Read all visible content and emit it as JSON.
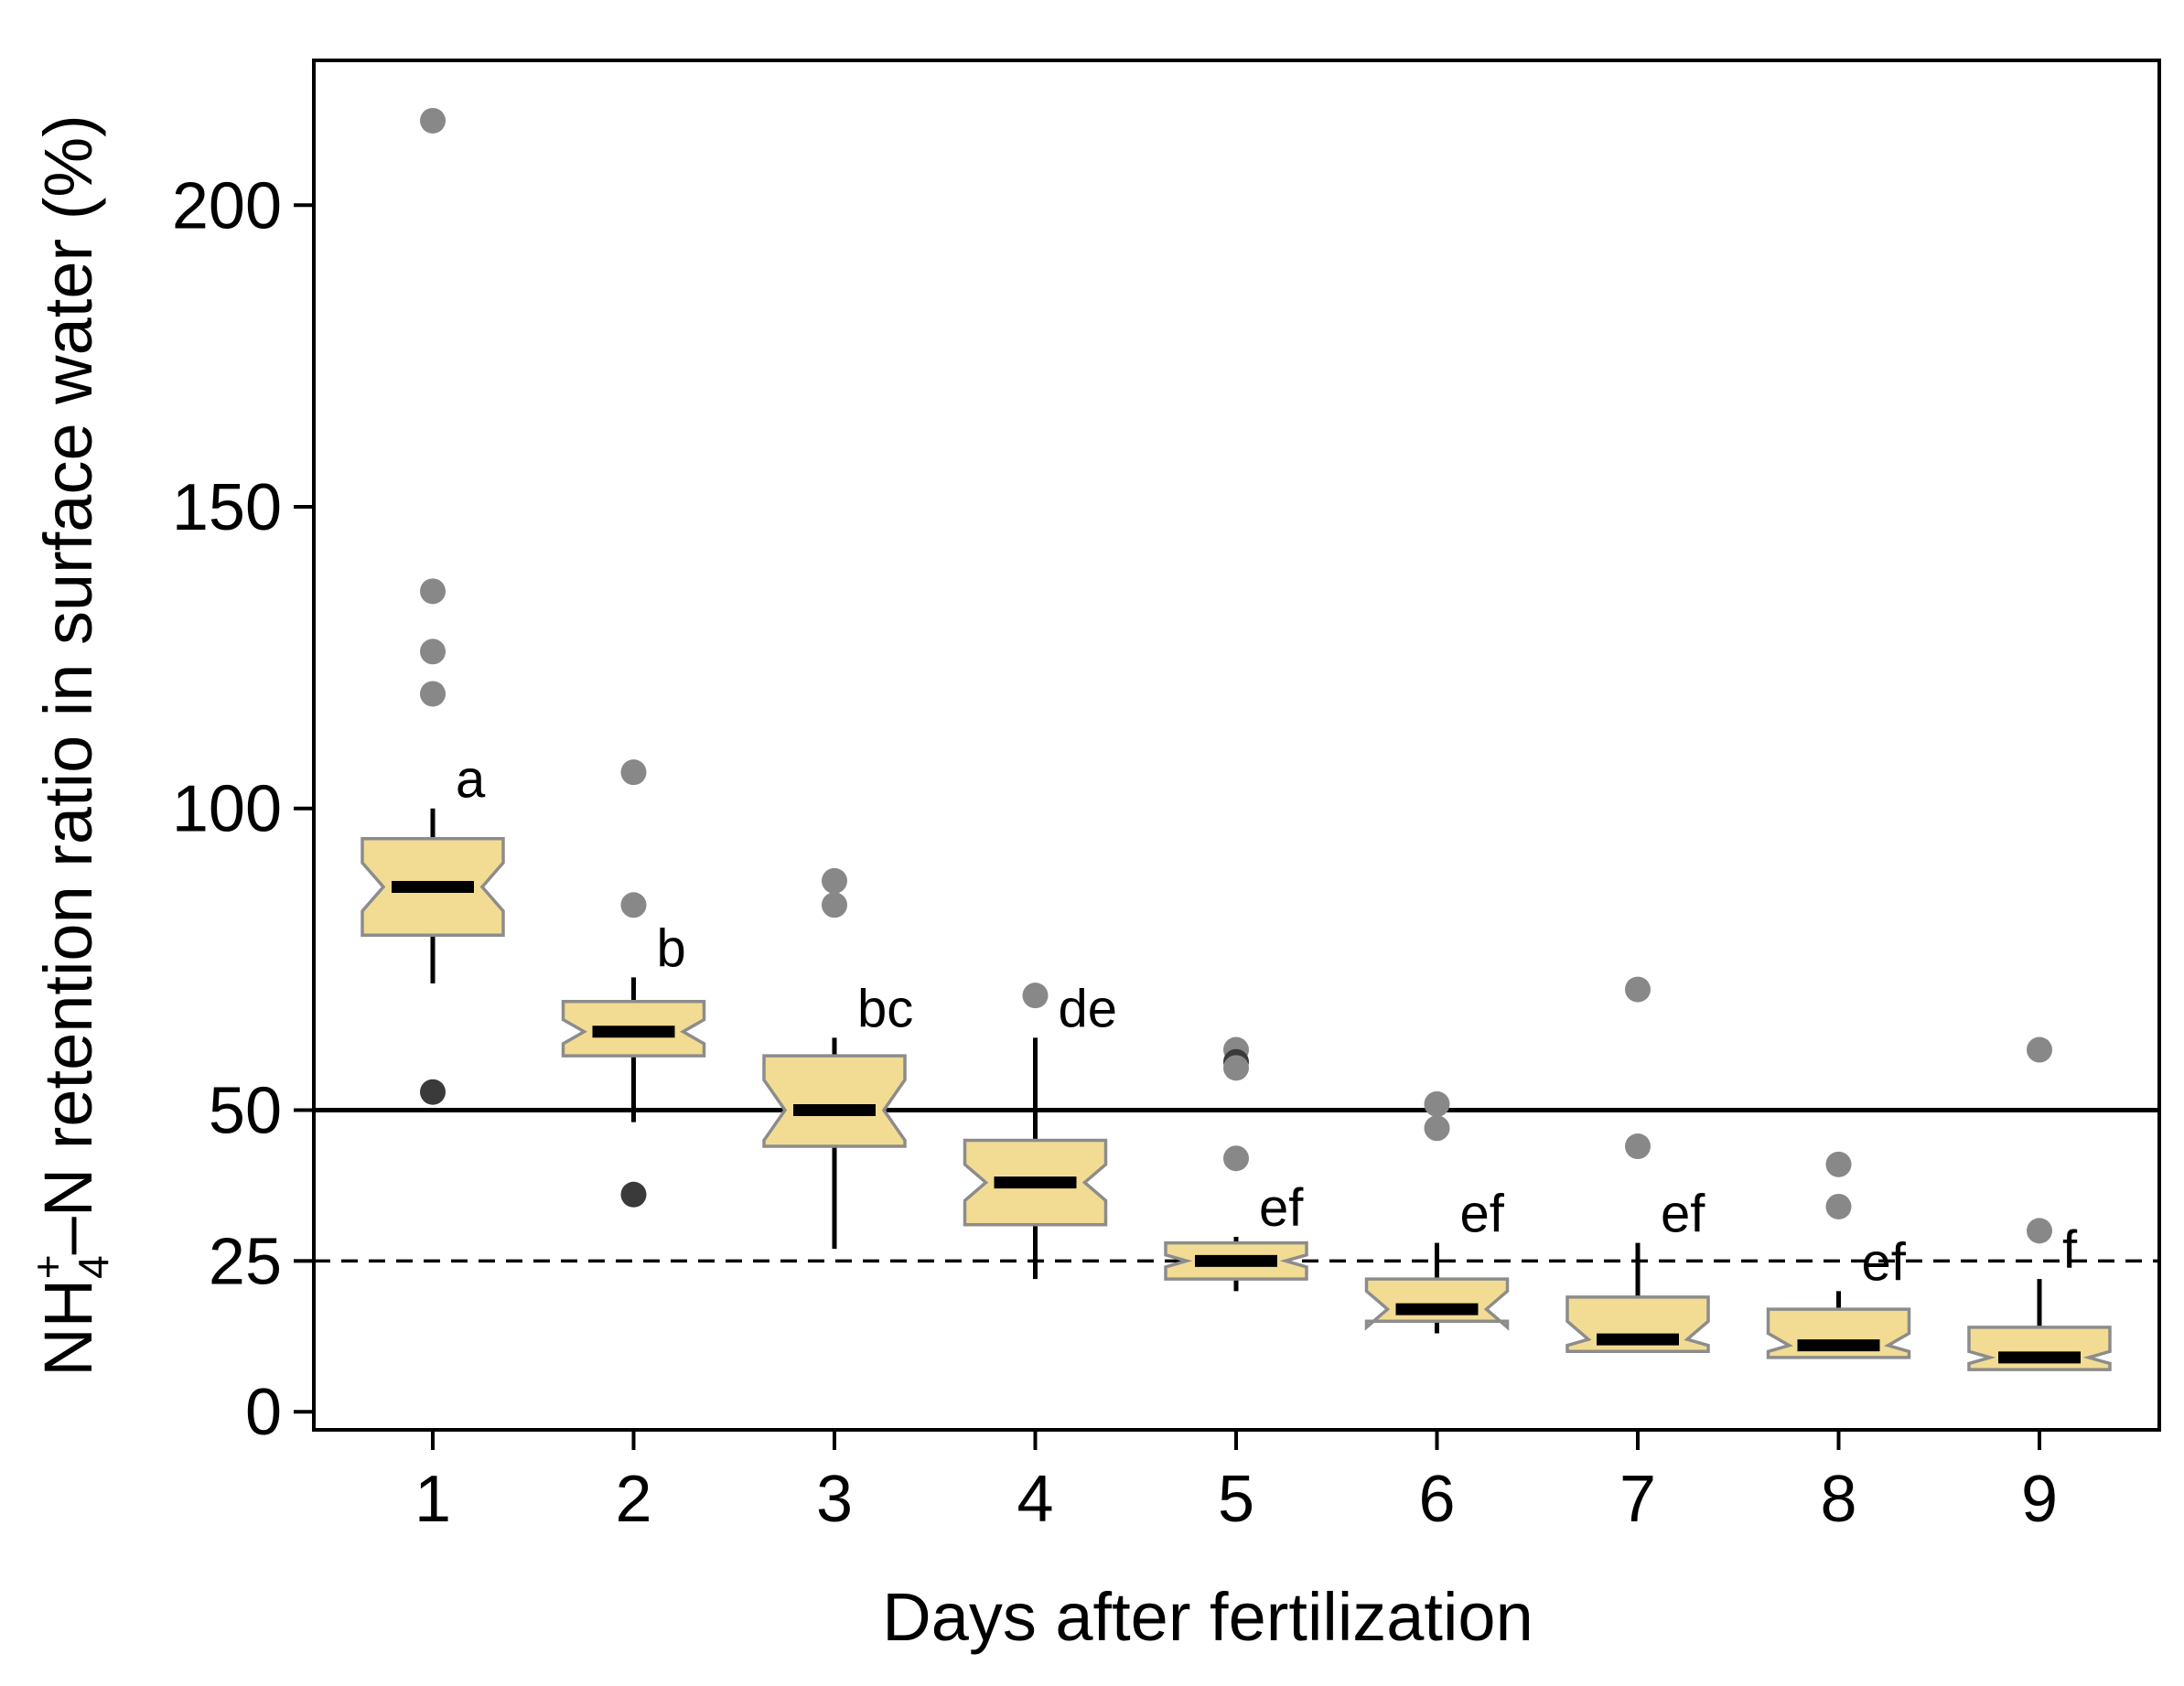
{
  "chart_data": {
    "type": "boxplot",
    "notched": true,
    "xlabel": "Days after fertilization",
    "ylabel": {
      "prefix": "NH",
      "subscript": "4",
      "superscript": "+",
      "suffix": "–N retention ratio in surface water (%)"
    },
    "ylim": [
      -3,
      224
    ],
    "yticks": [
      0,
      25,
      50,
      100,
      150,
      200
    ],
    "categories": [
      "1",
      "2",
      "3",
      "4",
      "5",
      "6",
      "7",
      "8",
      "9"
    ],
    "reference_lines": [
      {
        "value": 50,
        "style": "solid"
      },
      {
        "value": 25,
        "style": "dashed"
      }
    ],
    "boxes": [
      {
        "day": "1",
        "q1": 79,
        "median": 87,
        "q3": 95,
        "notch_low": 83,
        "notch_high": 91,
        "whisker_low": 71,
        "whisker_high": 100,
        "letter": "a",
        "outliers": [
          {
            "value": 214,
            "shade": "light"
          },
          {
            "value": 136,
            "shade": "light"
          },
          {
            "value": 126,
            "shade": "light"
          },
          {
            "value": 119,
            "shade": "light"
          },
          {
            "value": 53,
            "shade": "dark"
          }
        ]
      },
      {
        "day": "2",
        "q1": 59,
        "median": 63,
        "q3": 68,
        "notch_low": 61,
        "notch_high": 65,
        "whisker_low": 48,
        "whisker_high": 72,
        "letter": "b",
        "outliers": [
          {
            "value": 106,
            "shade": "light"
          },
          {
            "value": 84,
            "shade": "light"
          },
          {
            "value": 36,
            "shade": "dark"
          }
        ]
      },
      {
        "day": "3",
        "q1": 44,
        "median": 50,
        "q3": 59,
        "notch_low": 45,
        "notch_high": 55,
        "whisker_low": 27,
        "whisker_high": 62,
        "letter": "bc",
        "outliers": [
          {
            "value": 88,
            "shade": "light"
          },
          {
            "value": 84,
            "shade": "light"
          }
        ]
      },
      {
        "day": "4",
        "q1": 31,
        "median": 38,
        "q3": 45,
        "notch_low": 35,
        "notch_high": 41,
        "whisker_low": 22,
        "whisker_high": 62,
        "letter": "de",
        "outliers": [
          {
            "value": 69,
            "shade": "light"
          }
        ]
      },
      {
        "day": "5",
        "q1": 22,
        "median": 25,
        "q3": 28,
        "notch_low": 24,
        "notch_high": 26,
        "whisker_low": 20,
        "whisker_high": 29,
        "letter": "ef",
        "outliers": [
          {
            "value": 60,
            "shade": "light"
          },
          {
            "value": 58,
            "shade": "dark"
          },
          {
            "value": 57,
            "shade": "light"
          },
          {
            "value": 42,
            "shade": "light"
          }
        ]
      },
      {
        "day": "6",
        "q1": 15,
        "median": 17,
        "q3": 22,
        "notch_low": 14,
        "notch_high": 20,
        "whisker_low": 13,
        "whisker_high": 28,
        "letter": "ef",
        "outliers": [
          {
            "value": 51,
            "shade": "light"
          },
          {
            "value": 47,
            "shade": "light"
          }
        ]
      },
      {
        "day": "7",
        "q1": 10,
        "median": 12,
        "q3": 19,
        "notch_low": 11,
        "notch_high": 15,
        "whisker_low": 10,
        "whisker_high": 28,
        "letter": "ef",
        "outliers": [
          {
            "value": 70,
            "shade": "light"
          },
          {
            "value": 44,
            "shade": "light"
          }
        ]
      },
      {
        "day": "8",
        "q1": 9,
        "median": 11,
        "q3": 17,
        "notch_low": 10,
        "notch_high": 13,
        "whisker_low": 9,
        "whisker_high": 20,
        "letter": "ef",
        "outliers": [
          {
            "value": 41,
            "shade": "light"
          },
          {
            "value": 34,
            "shade": "light"
          }
        ]
      },
      {
        "day": "9",
        "q1": 7,
        "median": 9,
        "q3": 14,
        "notch_low": 8,
        "notch_high": 10,
        "whisker_low": 7,
        "whisker_high": 22,
        "letter": "f",
        "outliers": [
          {
            "value": 60,
            "shade": "light"
          },
          {
            "value": 30,
            "shade": "light"
          }
        ]
      }
    ],
    "colors": {
      "box_fill": "#f2dc93",
      "box_stroke": "#8c8c8c",
      "median": "#000000",
      "whisker": "#000000",
      "outlier_light": "#888888",
      "outlier_dark": "#3a3a3a",
      "axis": "#000000",
      "reference_line": "#000000"
    }
  }
}
